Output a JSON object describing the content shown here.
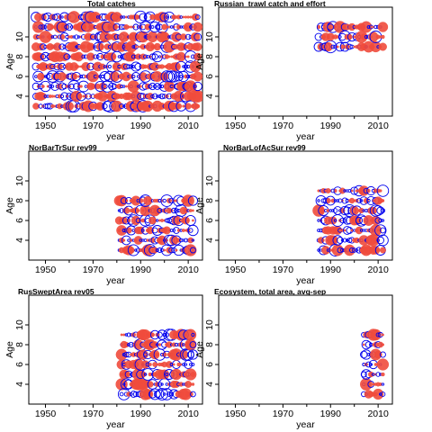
{
  "figure": {
    "colors": {
      "residual_pos": "#ef4b3c",
      "residual_neg": "#0000ee",
      "axis": "#000000"
    }
  },
  "chart_data": [
    {
      "type": "scatter",
      "title": "Total catches",
      "xlabel": "year",
      "ylabel": "Age",
      "xlim": [
        1943,
        2016
      ],
      "ylim": [
        2,
        13
      ],
      "xticks": [
        1950,
        1970,
        1990,
        2010
      ],
      "yticks": [
        4,
        6,
        8,
        10
      ],
      "years": [
        1946,
        2014
      ],
      "ages": [
        3,
        12
      ],
      "legend": "none",
      "grid": false
    },
    {
      "type": "scatter",
      "title": "Russian_trawl catch and effort",
      "xlabel": "year",
      "ylabel": "Age",
      "xlim": [
        1943,
        2016
      ],
      "ylim": [
        2,
        13
      ],
      "xticks": [
        1950,
        1970,
        1990,
        2010
      ],
      "yticks": [
        4,
        6,
        8,
        10
      ],
      "years": [
        1985,
        2012
      ],
      "ages": [
        9,
        11
      ],
      "legend": "none",
      "grid": false
    },
    {
      "type": "scatter",
      "title": "NorBarTrSur rev99",
      "xlabel": "year",
      "ylabel": "Age",
      "xlim": [
        1943,
        2016
      ],
      "ylim": [
        2,
        13
      ],
      "xticks": [
        1950,
        1970,
        1990,
        2010
      ],
      "yticks": [
        4,
        6,
        8,
        10
      ],
      "years": [
        1981,
        2012
      ],
      "ages": [
        3,
        8
      ],
      "legend": "none",
      "grid": false
    },
    {
      "type": "scatter",
      "title": "NorBarLofAcSur rev99",
      "xlabel": "year",
      "ylabel": "Age",
      "xlim": [
        1943,
        2016
      ],
      "ylim": [
        2,
        13
      ],
      "xticks": [
        1950,
        1970,
        1990,
        2010
      ],
      "yticks": [
        4,
        6,
        8,
        10
      ],
      "years": [
        1985,
        2012
      ],
      "ages": [
        3,
        9
      ],
      "legend": "none",
      "grid": false
    },
    {
      "type": "scatter",
      "title": "RusSweptArea rev05",
      "xlabel": "year",
      "ylabel": "Age",
      "xlim": [
        1943,
        2016
      ],
      "ylim": [
        2,
        13
      ],
      "xticks": [
        1950,
        1970,
        1990,
        2010
      ],
      "yticks": [
        4,
        6,
        8,
        10
      ],
      "years": [
        1982,
        2012
      ],
      "ages": [
        3,
        9
      ],
      "legend": "none",
      "grid": false
    },
    {
      "type": "scatter",
      "title": "Ecosystem, total area, avg-sep",
      "xlabel": "year",
      "ylabel": "Age",
      "xlim": [
        1943,
        2016
      ],
      "ylim": [
        2,
        13
      ],
      "xticks": [
        1950,
        1970,
        1990,
        2010
      ],
      "yticks": [
        4,
        6,
        8,
        10
      ],
      "years": [
        2004,
        2012
      ],
      "ages": [
        3,
        9
      ],
      "legend": "none",
      "grid": false
    }
  ]
}
